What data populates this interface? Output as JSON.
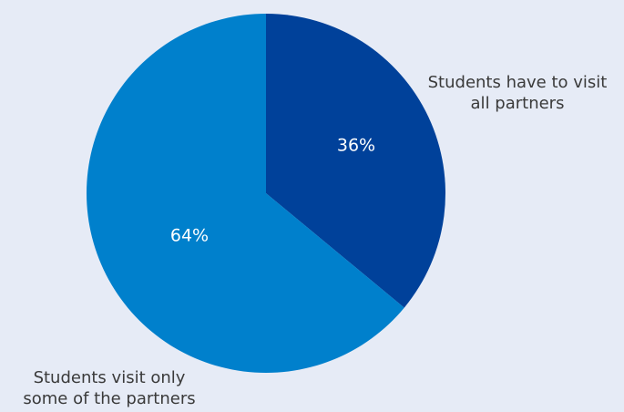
{
  "chart_data": {
    "type": "pie",
    "title": "",
    "slices": [
      {
        "label_lines": [
          "Students have to visit",
          "all partners"
        ],
        "value": 36,
        "display": "36%",
        "color": "#00419a"
      },
      {
        "label_lines": [
          "Students visit only",
          "some of the partners"
        ],
        "value": 64,
        "display": "64%",
        "color": "#0080cc"
      }
    ],
    "start_angle_deg": 0,
    "direction": "clockwise",
    "legend": "none",
    "label_color": "#ffffff",
    "annotation_color": "#3a3a3a",
    "background": "#e6ebf6"
  }
}
